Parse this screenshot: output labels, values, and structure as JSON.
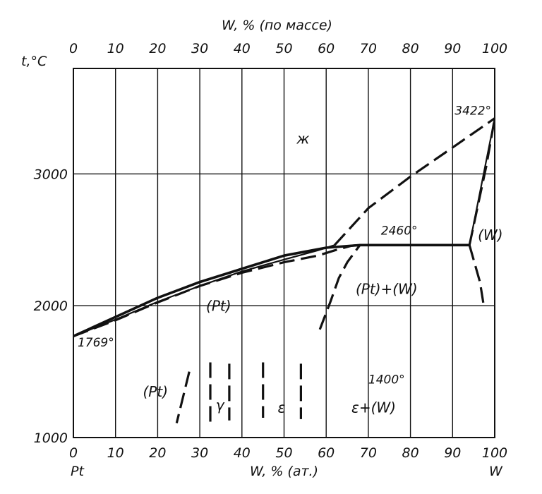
{
  "chart_data": {
    "type": "line",
    "title": "",
    "top_axis_label": "W, % (по массе)",
    "bottom_axis_label": "W, % (ат.)",
    "y_axis_label": "t,°C",
    "left_element": "Pt",
    "right_element": "W",
    "x_ticks": [
      0,
      10,
      20,
      30,
      40,
      50,
      60,
      70,
      80,
      90,
      100
    ],
    "x_tick_labels": [
      "0",
      "10",
      "20",
      "30",
      "40",
      "50",
      "60",
      "70",
      "80",
      "90",
      "100"
    ],
    "y_ticks": [
      1000,
      2000,
      3000
    ],
    "y_tick_labels": [
      "1000",
      "2000",
      "3000"
    ],
    "xlim": [
      0,
      100
    ],
    "ylim": [
      1000,
      3800
    ],
    "grid": true,
    "series": [
      {
        "style": "solid-thick",
        "points": [
          [
            0,
            1769
          ],
          [
            10,
            1915
          ],
          [
            20,
            2060
          ],
          [
            30,
            2180
          ],
          [
            40,
            2280
          ],
          [
            50,
            2380
          ],
          [
            60,
            2440
          ],
          [
            68,
            2460
          ],
          [
            94,
            2460
          ]
        ]
      },
      {
        "style": "solid",
        "points": [
          [
            0,
            1769
          ],
          [
            10,
            1895
          ],
          [
            20,
            2030
          ],
          [
            30,
            2150
          ],
          [
            40,
            2260
          ],
          [
            50,
            2350
          ],
          [
            58,
            2420
          ],
          [
            62,
            2460
          ]
        ]
      },
      {
        "style": "dashed",
        "points": [
          [
            0,
            1769
          ],
          [
            10,
            1890
          ],
          [
            20,
            2025
          ],
          [
            30,
            2150
          ],
          [
            40,
            2250
          ],
          [
            50,
            2330
          ],
          [
            58,
            2380
          ],
          [
            62,
            2420
          ],
          [
            66,
            2455
          ],
          [
            68,
            2460
          ]
        ]
      },
      {
        "style": "dashed",
        "points": [
          [
            62,
            2460
          ],
          [
            70,
            2740
          ],
          [
            80,
            2980
          ],
          [
            90,
            3200
          ],
          [
            100,
            3422
          ]
        ]
      },
      {
        "style": "dashed",
        "points": [
          [
            58.5,
            1820
          ],
          [
            61,
            2030
          ],
          [
            63,
            2210
          ],
          [
            65,
            2330
          ],
          [
            68,
            2460
          ]
        ]
      },
      {
        "style": "solid",
        "points": [
          [
            94,
            2460
          ],
          [
            100,
            3422
          ]
        ]
      },
      {
        "style": "dashed",
        "points": [
          [
            94,
            2460
          ],
          [
            98,
            3060
          ],
          [
            100,
            3422
          ]
        ]
      },
      {
        "style": "dashed",
        "points": [
          [
            94,
            2460
          ],
          [
            96.5,
            2180
          ],
          [
            97.5,
            1980
          ]
        ]
      },
      {
        "style": "dashed",
        "points": [
          [
            27.5,
            1500
          ],
          [
            24.5,
            1110
          ]
        ]
      },
      {
        "style": "dashed",
        "points": [
          [
            32.5,
            1570
          ],
          [
            32.5,
            1120
          ]
        ]
      },
      {
        "style": "dashed",
        "points": [
          [
            37,
            1560
          ],
          [
            37,
            1130
          ]
        ]
      },
      {
        "style": "dashed",
        "points": [
          [
            45,
            1570
          ],
          [
            45,
            1150
          ]
        ]
      },
      {
        "style": "dashed",
        "points": [
          [
            54,
            1560
          ],
          [
            54,
            1140
          ]
        ]
      }
    ],
    "annotations": [
      {
        "text": "ж",
        "x": 53,
        "y": 3230,
        "kind": "region"
      },
      {
        "text": "3422°",
        "x": 90.5,
        "y": 3450,
        "kind": "temp"
      },
      {
        "text": "2460°",
        "x": 73,
        "y": 2540,
        "kind": "temp"
      },
      {
        "text": "(W)",
        "x": 96,
        "y": 2500,
        "kind": "region"
      },
      {
        "text": "(Pt)+(W)",
        "x": 67,
        "y": 2090,
        "kind": "region"
      },
      {
        "text": "(Pt)",
        "x": 31.5,
        "y": 1960,
        "kind": "region"
      },
      {
        "text": "1769°",
        "x": 1,
        "y": 1690,
        "kind": "temp"
      },
      {
        "text": "1400°",
        "x": 70,
        "y": 1410,
        "kind": "temp"
      },
      {
        "text": "(Pt)",
        "x": 16.5,
        "y": 1310,
        "kind": "region"
      },
      {
        "text": "γ",
        "x": 33.8,
        "y": 1210,
        "kind": "region"
      },
      {
        "text": "ε",
        "x": 48.5,
        "y": 1190,
        "kind": "region"
      },
      {
        "text": "ε+(W)",
        "x": 66,
        "y": 1190,
        "kind": "region"
      }
    ]
  }
}
